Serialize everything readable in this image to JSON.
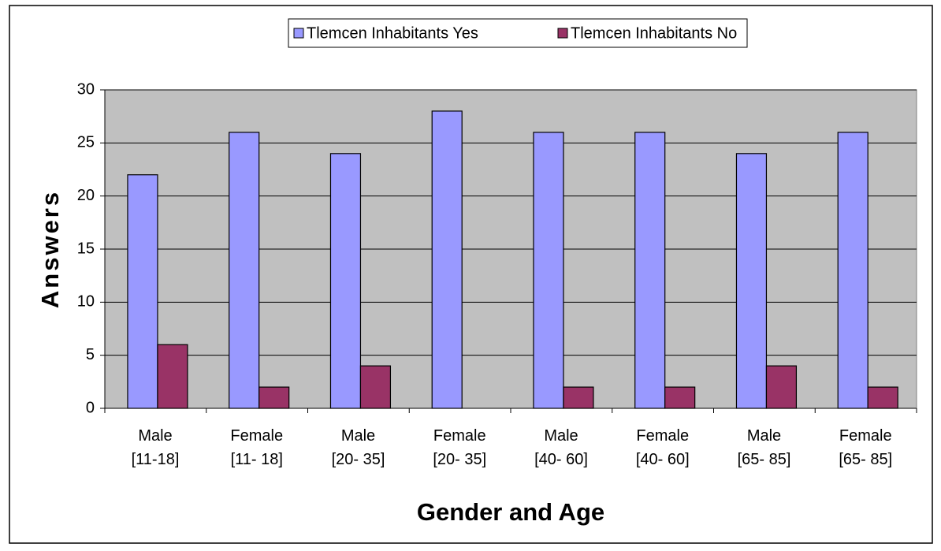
{
  "chart_data": {
    "type": "bar",
    "xlabel": "Gender and Age",
    "ylabel": "Answers",
    "categories": [
      "Male\n[11-18]",
      "Female\n[11- 18]",
      "Male\n[20- 35]",
      "Female\n[20- 35]",
      "Male\n[40- 60]",
      "Female\n[40- 60]",
      "Male\n[65- 85]",
      "Female\n[65- 85]"
    ],
    "series": [
      {
        "name": "Tlemcen Inhabitants Yes",
        "color": "#9999ff",
        "values": [
          22,
          26,
          24,
          28,
          26,
          26,
          24,
          26
        ]
      },
      {
        "name": "Tlemcen Inhabitants No",
        "color": "#993366",
        "values": [
          6,
          2,
          4,
          0,
          2,
          2,
          4,
          2
        ]
      }
    ],
    "ylim": [
      0,
      30
    ],
    "yticks": [
      0,
      5,
      10,
      15,
      20,
      25,
      30
    ],
    "grid": true,
    "legend": "top"
  }
}
